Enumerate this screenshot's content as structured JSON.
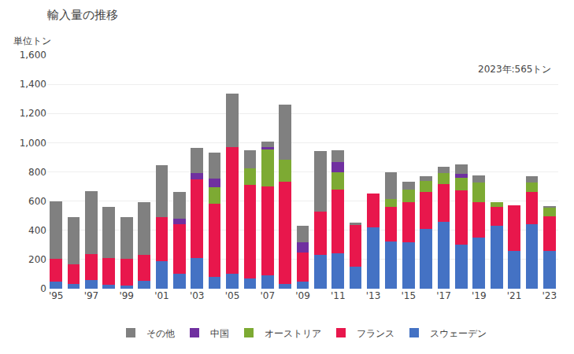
{
  "chart_data": {
    "type": "bar",
    "title": "輸入量の推移",
    "ylabel": "単位トン",
    "annotation": "2023年:565トン",
    "stacked": true,
    "grid": true,
    "legend": "bottom",
    "categories": [
      "'95",
      null,
      "'97",
      null,
      "'99",
      null,
      "'01",
      null,
      "'03",
      null,
      "'05",
      null,
      "'07",
      null,
      "'09",
      null,
      "'11",
      null,
      "'13",
      null,
      "'15",
      null,
      "'17",
      null,
      "'19",
      null,
      "'21",
      null,
      "'23"
    ],
    "ylim": [
      0,
      1600
    ],
    "yticks": [
      0,
      200,
      400,
      600,
      800,
      {
        "value": 1000,
        "label": "1,000"
      },
      {
        "value": 1200,
        "label": "1,200"
      },
      {
        "value": 1400,
        "label": "1,400"
      },
      {
        "value": 1600,
        "label": "1,600"
      }
    ],
    "series": [
      {
        "name": "スウェーデン",
        "color": "#4472C4",
        "values": [
          50,
          30,
          60,
          25,
          20,
          55,
          190,
          100,
          210,
          80,
          105,
          70,
          90,
          30,
          50,
          230,
          240,
          150,
          420,
          325,
          320,
          410,
          460,
          300,
          350,
          430,
          260,
          440,
          260
        ]
      },
      {
        "name": "フランス",
        "color": "#E8174C",
        "values": [
          155,
          135,
          175,
          185,
          185,
          175,
          300,
          340,
          540,
          500,
          865,
          640,
          610,
          700,
          200,
          300,
          440,
          290,
          230,
          235,
          270,
          255,
          255,
          375,
          240,
          130,
          310,
          225,
          235
        ]
      },
      {
        "name": "オーストリア",
        "color": "#7DAA33",
        "values": [
          0,
          0,
          0,
          0,
          0,
          0,
          0,
          0,
          0,
          115,
          0,
          115,
          255,
          155,
          0,
          0,
          120,
          0,
          0,
          55,
          90,
          75,
          75,
          85,
          135,
          30,
          0,
          60,
          60
        ]
      },
      {
        "name": "中国",
        "color": "#7030A0",
        "values": [
          0,
          0,
          0,
          0,
          0,
          0,
          0,
          40,
          40,
          60,
          0,
          0,
          15,
          0,
          70,
          0,
          65,
          0,
          0,
          0,
          0,
          0,
          0,
          25,
          0,
          0,
          0,
          0,
          0
        ]
      },
      {
        "name": "その他",
        "color": "#808080",
        "values": [
          395,
          325,
          435,
          350,
          285,
          360,
          355,
          180,
          175,
          175,
          365,
          125,
          40,
          375,
          110,
          415,
          85,
          10,
          0,
          185,
          55,
          30,
          45,
          65,
          50,
          0,
          0,
          45,
          10
        ]
      }
    ]
  }
}
